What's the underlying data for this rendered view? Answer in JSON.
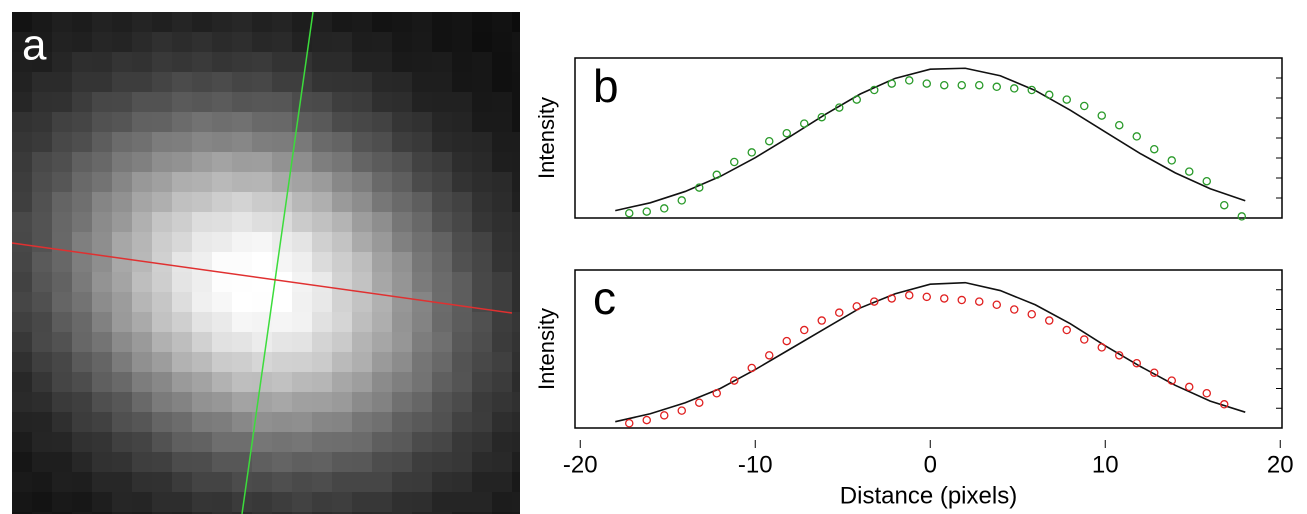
{
  "chart_data": [
    {
      "type": "image",
      "label": "a"
    },
    {
      "type": "scatter",
      "label": "b",
      "ylabel": "Intensity",
      "xlim": [
        -20.3,
        20.1
      ],
      "ylim": [
        0,
        1
      ],
      "points": {
        "color": "#2a9a2a",
        "x": [
          -17.2,
          -16.2,
          -15.2,
          -14.2,
          -13.2,
          -12.2,
          -11.2,
          -10.2,
          -9.2,
          -8.2,
          -7.2,
          -6.2,
          -5.2,
          -4.2,
          -3.2,
          -2.2,
          -1.2,
          -0.2,
          0.8,
          1.8,
          2.8,
          3.8,
          4.8,
          5.8,
          6.8,
          7.8,
          8.8,
          9.8,
          10.8,
          11.8,
          12.8,
          13.8,
          14.8,
          15.8,
          16.8,
          17.8
        ],
        "values": [
          0.03,
          0.04,
          0.06,
          0.11,
          0.19,
          0.27,
          0.35,
          0.41,
          0.48,
          0.53,
          0.59,
          0.63,
          0.69,
          0.74,
          0.8,
          0.84,
          0.86,
          0.84,
          0.83,
          0.83,
          0.83,
          0.82,
          0.81,
          0.8,
          0.77,
          0.74,
          0.7,
          0.64,
          0.58,
          0.51,
          0.43,
          0.36,
          0.29,
          0.23,
          0.08,
          0.01
        ]
      },
      "fit": {
        "color": "#111111",
        "x": [
          -18,
          -16,
          -14,
          -12,
          -10,
          -8,
          -6,
          -4,
          -2,
          0,
          2,
          4,
          6,
          8,
          10,
          12,
          14,
          16,
          18
        ],
        "values": [
          0.046,
          0.095,
          0.166,
          0.26,
          0.377,
          0.51,
          0.647,
          0.775,
          0.873,
          0.93,
          0.936,
          0.889,
          0.797,
          0.674,
          0.538,
          0.403,
          0.282,
          0.183,
          0.108
        ]
      }
    },
    {
      "type": "scatter",
      "label": "c",
      "ylabel": "Intensity",
      "xlabel": "Distance (pixels)",
      "xlim": [
        -20.3,
        20.1
      ],
      "ylim": [
        0,
        1
      ],
      "xticks": [
        -20,
        -10,
        0,
        10,
        20
      ],
      "points": {
        "color": "#e02020",
        "x": [
          -17.2,
          -16.2,
          -15.2,
          -14.2,
          -13.2,
          -12.2,
          -11.2,
          -10.2,
          -9.2,
          -8.2,
          -7.2,
          -6.2,
          -5.2,
          -4.2,
          -3.2,
          -2.2,
          -1.2,
          -0.2,
          0.8,
          1.8,
          2.8,
          3.8,
          4.8,
          5.8,
          6.8,
          7.8,
          8.8,
          9.8,
          10.8,
          11.8,
          12.8,
          13.8,
          14.8,
          15.8,
          16.8
        ],
        "values": [
          0.03,
          0.05,
          0.08,
          0.11,
          0.16,
          0.22,
          0.3,
          0.38,
          0.46,
          0.55,
          0.62,
          0.68,
          0.73,
          0.77,
          0.8,
          0.82,
          0.84,
          0.83,
          0.82,
          0.81,
          0.8,
          0.78,
          0.75,
          0.72,
          0.68,
          0.62,
          0.56,
          0.51,
          0.46,
          0.41,
          0.35,
          0.3,
          0.26,
          0.22,
          0.15
        ]
      },
      "fit": {
        "color": "#111111",
        "x": [
          -18,
          -16,
          -14,
          -12,
          -10,
          -8,
          -6,
          -4,
          -2,
          0,
          2,
          4,
          6,
          8,
          10,
          12,
          14,
          16,
          18
        ],
        "values": [
          0.04,
          0.09,
          0.16,
          0.25,
          0.37,
          0.5,
          0.63,
          0.76,
          0.85,
          0.91,
          0.92,
          0.87,
          0.78,
          0.66,
          0.52,
          0.39,
          0.27,
          0.17,
          0.1
        ]
      }
    }
  ]
}
